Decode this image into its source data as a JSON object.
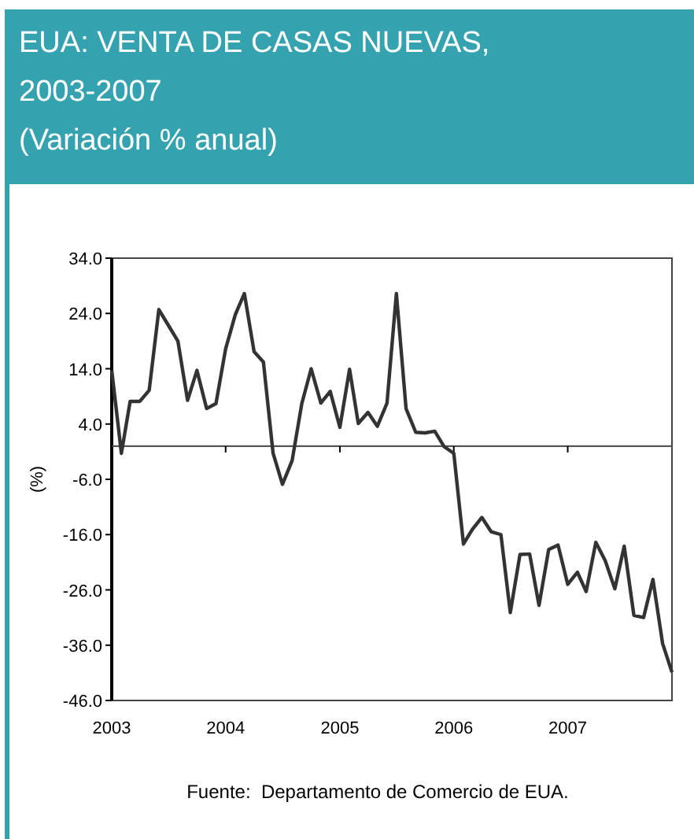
{
  "chart_data": {
    "type": "line",
    "title": "EUA: VENTA DE CASAS NUEVAS,\n2003-2007\n(Variación % anual)",
    "ylabel": "(%)",
    "annotations": [
      "Fuente:  Departamento de Comercio de EUA."
    ],
    "x": [
      "2003-01",
      "2003-02",
      "2003-03",
      "2003-04",
      "2003-05",
      "2003-06",
      "2003-07",
      "2003-08",
      "2003-09",
      "2003-10",
      "2003-11",
      "2003-12",
      "2004-01",
      "2004-02",
      "2004-03",
      "2004-04",
      "2004-05",
      "2004-06",
      "2004-07",
      "2004-08",
      "2004-09",
      "2004-10",
      "2004-11",
      "2004-12",
      "2005-01",
      "2005-02",
      "2005-03",
      "2005-04",
      "2005-05",
      "2005-06",
      "2005-07",
      "2005-08",
      "2005-09",
      "2005-10",
      "2005-11",
      "2005-12",
      "2006-01",
      "2006-02",
      "2006-03",
      "2006-04",
      "2006-05",
      "2006-06",
      "2006-07",
      "2006-08",
      "2006-09",
      "2006-10",
      "2006-11",
      "2006-12",
      "2007-01",
      "2007-02",
      "2007-03",
      "2007-04",
      "2007-05",
      "2007-06",
      "2007-07",
      "2007-08",
      "2007-09",
      "2007-10",
      "2007-11",
      "2007-12"
    ],
    "series": [
      {
        "color": "#333333",
        "values": [
          13.7,
          -1.3,
          8.1,
          8.1,
          10.1,
          24.7,
          21.9,
          19.0,
          8.3,
          13.7,
          6.8,
          7.7,
          17.6,
          23.8,
          27.6,
          17.1,
          15.2,
          -1.3,
          -6.9,
          -2.6,
          7.7,
          14.0,
          7.8,
          9.9,
          3.4,
          13.9,
          4.1,
          6.1,
          3.6,
          7.8,
          27.6,
          6.8,
          2.5,
          2.4,
          2.7,
          -0.1,
          -1.3,
          -17.7,
          -15.1,
          -12.9,
          -15.5,
          -16.0,
          -30.1,
          -19.6,
          -19.5,
          -28.8,
          -18.7,
          -17.9,
          -25.0,
          -22.8,
          -26.3,
          -17.4,
          -20.7,
          -25.8,
          -18.1,
          -30.6,
          -31.0,
          -24.1,
          -35.7,
          -40.9
        ]
      }
    ],
    "xlim": [
      "2003-01",
      "2007-12"
    ],
    "xticks": [
      {
        "value": "2003-01",
        "label": "2003"
      },
      {
        "value": "2004-01",
        "label": "2004"
      },
      {
        "value": "2005-01",
        "label": "2005"
      },
      {
        "value": "2006-01",
        "label": "2006"
      },
      {
        "value": "2007-01",
        "label": "2007"
      }
    ],
    "ylim": [
      -46,
      34
    ],
    "yticks": [
      {
        "value": -46,
        "label": "-46.0"
      },
      {
        "value": -36,
        "label": "-36.0"
      },
      {
        "value": -26,
        "label": "-26.0"
      },
      {
        "value": -16,
        "label": "-16.0"
      },
      {
        "value": -6,
        "label": "-6.0"
      },
      {
        "value": 4,
        "label": "4.0"
      },
      {
        "value": 14,
        "label": "14.0"
      },
      {
        "value": 24,
        "label": "24.0"
      },
      {
        "value": 34,
        "label": "34.0"
      }
    ],
    "ref_lines": [
      {
        "axis": "y",
        "value": 0,
        "color": "#555555"
      }
    ],
    "line_style": "solid"
  }
}
